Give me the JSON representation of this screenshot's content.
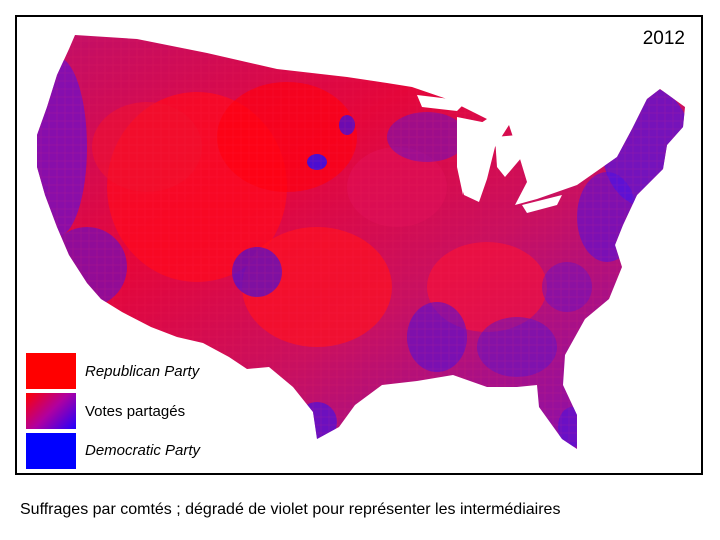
{
  "map": {
    "year_label": "2012",
    "colors": {
      "republican": "#ff0000",
      "democratic": "#0000ff",
      "mixed": "#8a00c8"
    }
  },
  "legend": {
    "items": [
      {
        "label": "Republican Party",
        "color": "#ff0000"
      },
      {
        "label": "Votes partagés",
        "color": "gradient"
      },
      {
        "label": "Democratic Party",
        "color": "#0000ff"
      }
    ]
  },
  "caption": "Suffrages par comtés ; dégradé de violet pour représenter les intermédiaires"
}
